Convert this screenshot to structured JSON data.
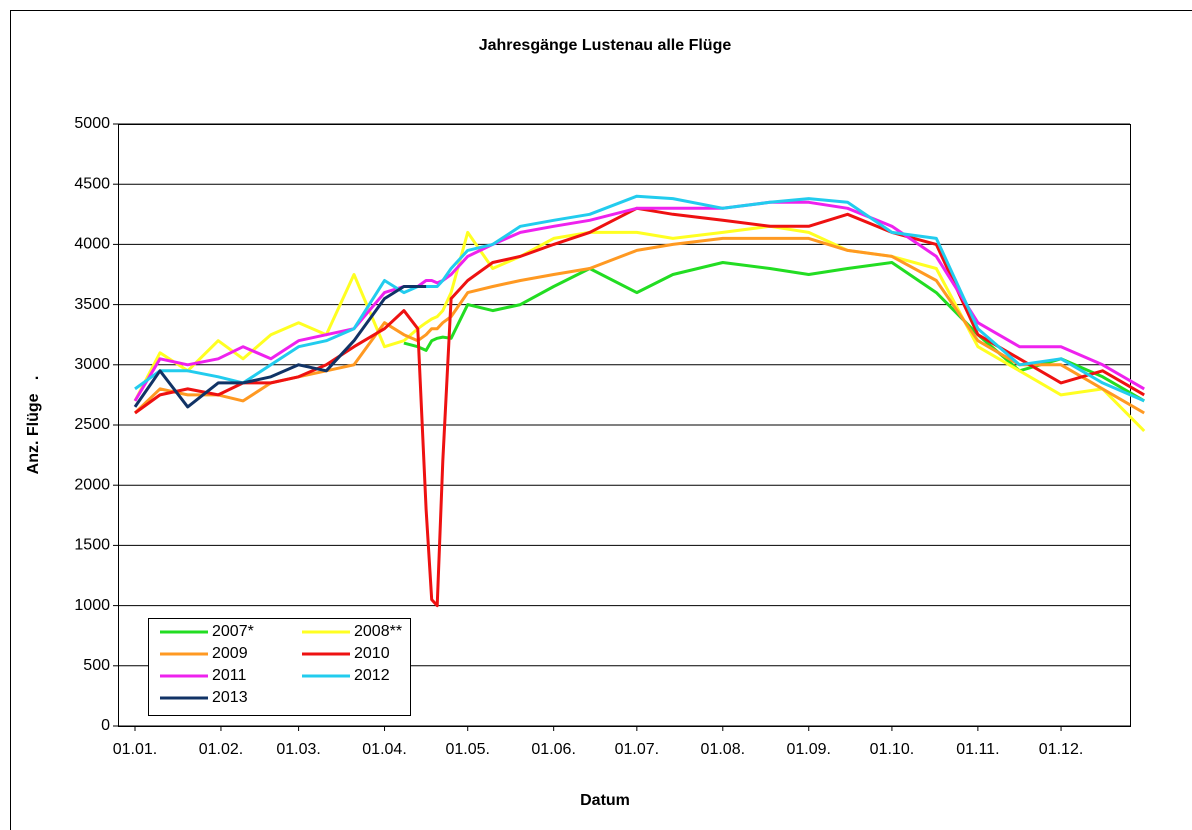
{
  "chart_data": {
    "type": "line",
    "title": "Jahresgänge Lustenau alle Flüge",
    "xlabel": "Datum",
    "ylabel": "Anz. Flüge   .",
    "x": [
      1,
      10,
      20,
      31,
      40,
      50,
      60,
      70,
      80,
      91,
      98,
      103,
      106,
      108,
      110,
      112,
      115,
      121,
      130,
      140,
      152,
      165,
      182,
      195,
      213,
      230,
      244,
      258,
      274,
      290,
      305,
      320,
      335,
      350,
      365
    ],
    "xlim": [
      1,
      366
    ],
    "xticks": [
      {
        "value": 1,
        "label": "01.01."
      },
      {
        "value": 32,
        "label": "01.02."
      },
      {
        "value": 60,
        "label": "01.03."
      },
      {
        "value": 91,
        "label": "01.04."
      },
      {
        "value": 121,
        "label": "01.05."
      },
      {
        "value": 152,
        "label": "01.06."
      },
      {
        "value": 182,
        "label": "01.07."
      },
      {
        "value": 213,
        "label": "01.08."
      },
      {
        "value": 244,
        "label": "01.09."
      },
      {
        "value": 274,
        "label": "01.10."
      },
      {
        "value": 305,
        "label": "01.11."
      },
      {
        "value": 335,
        "label": "01.12."
      }
    ],
    "ylim": [
      0,
      5000
    ],
    "yticks": [
      0,
      500,
      1000,
      1500,
      2000,
      2500,
      3000,
      3500,
      4000,
      4500,
      5000
    ],
    "grid": true,
    "legend": "lower left",
    "series": [
      {
        "name": "2007*",
        "color": "#22dd22",
        "values": [
          null,
          null,
          null,
          null,
          null,
          null,
          null,
          null,
          null,
          null,
          3180,
          3150,
          3120,
          3200,
          3220,
          3230,
          3220,
          3500,
          3450,
          3500,
          3650,
          3800,
          3600,
          3750,
          3850,
          3800,
          3750,
          3800,
          3850,
          3600,
          3250,
          2950,
          3050,
          2900,
          2700
        ]
      },
      {
        "name": "2008**",
        "color": "#ffff22",
        "values": [
          2700,
          3100,
          2950,
          3200,
          3050,
          3250,
          3350,
          3250,
          3750,
          3150,
          3200,
          3300,
          3350,
          3380,
          3400,
          3450,
          3600,
          4100,
          3800,
          3900,
          4050,
          4100,
          4100,
          4050,
          4100,
          4150,
          4100,
          3950,
          3900,
          3800,
          3150,
          2950,
          2750,
          2800,
          2450
        ]
      },
      {
        "name": "2009",
        "color": "#ff9922",
        "values": [
          2600,
          2800,
          2750,
          2750,
          2700,
          2850,
          2900,
          2950,
          3000,
          3350,
          3250,
          3200,
          3250,
          3300,
          3300,
          3350,
          3400,
          3600,
          3650,
          3700,
          3750,
          3800,
          3950,
          4000,
          4050,
          4050,
          4050,
          3950,
          3900,
          3700,
          3200,
          3000,
          3000,
          2800,
          2600
        ]
      },
      {
        "name": "2010",
        "color": "#ee1111",
        "values": [
          2600,
          2750,
          2800,
          2750,
          2850,
          2850,
          2900,
          3000,
          3150,
          3300,
          3450,
          3300,
          1800,
          1050,
          1000,
          2200,
          3550,
          3700,
          3850,
          3900,
          4000,
          4100,
          4300,
          4250,
          4200,
          4150,
          4150,
          4250,
          4100,
          4000,
          3250,
          3050,
          2850,
          2950,
          2750
        ]
      },
      {
        "name": "2011",
        "color": "#ee22ee",
        "values": [
          2700,
          3050,
          3000,
          3050,
          3150,
          3050,
          3200,
          3250,
          3300,
          3600,
          3650,
          3650,
          3700,
          3700,
          3680,
          3700,
          3750,
          3900,
          4000,
          4100,
          4150,
          4200,
          4300,
          4300,
          4300,
          4350,
          4350,
          4300,
          4150,
          3900,
          3350,
          3150,
          3150,
          3000,
          2800
        ]
      },
      {
        "name": "2012",
        "color": "#22ccee",
        "values": [
          2800,
          2950,
          2950,
          2900,
          2850,
          3000,
          3150,
          3200,
          3300,
          3700,
          3600,
          3650,
          3650,
          3650,
          3650,
          3700,
          3800,
          3950,
          4000,
          4150,
          4200,
          4250,
          4400,
          4380,
          4300,
          4350,
          4380,
          4350,
          4100,
          4050,
          3300,
          3000,
          3050,
          2850,
          2700
        ]
      },
      {
        "name": "2013",
        "color": "#113366",
        "values": [
          2650,
          2950,
          2650,
          2850,
          2850,
          2900,
          3000,
          2950,
          3200,
          3550,
          3650,
          3650,
          3650,
          null,
          null,
          null,
          null,
          null,
          null,
          null,
          null,
          null,
          null,
          null,
          null,
          null,
          null,
          null,
          null,
          null,
          null,
          null,
          null,
          null,
          null
        ]
      }
    ]
  }
}
